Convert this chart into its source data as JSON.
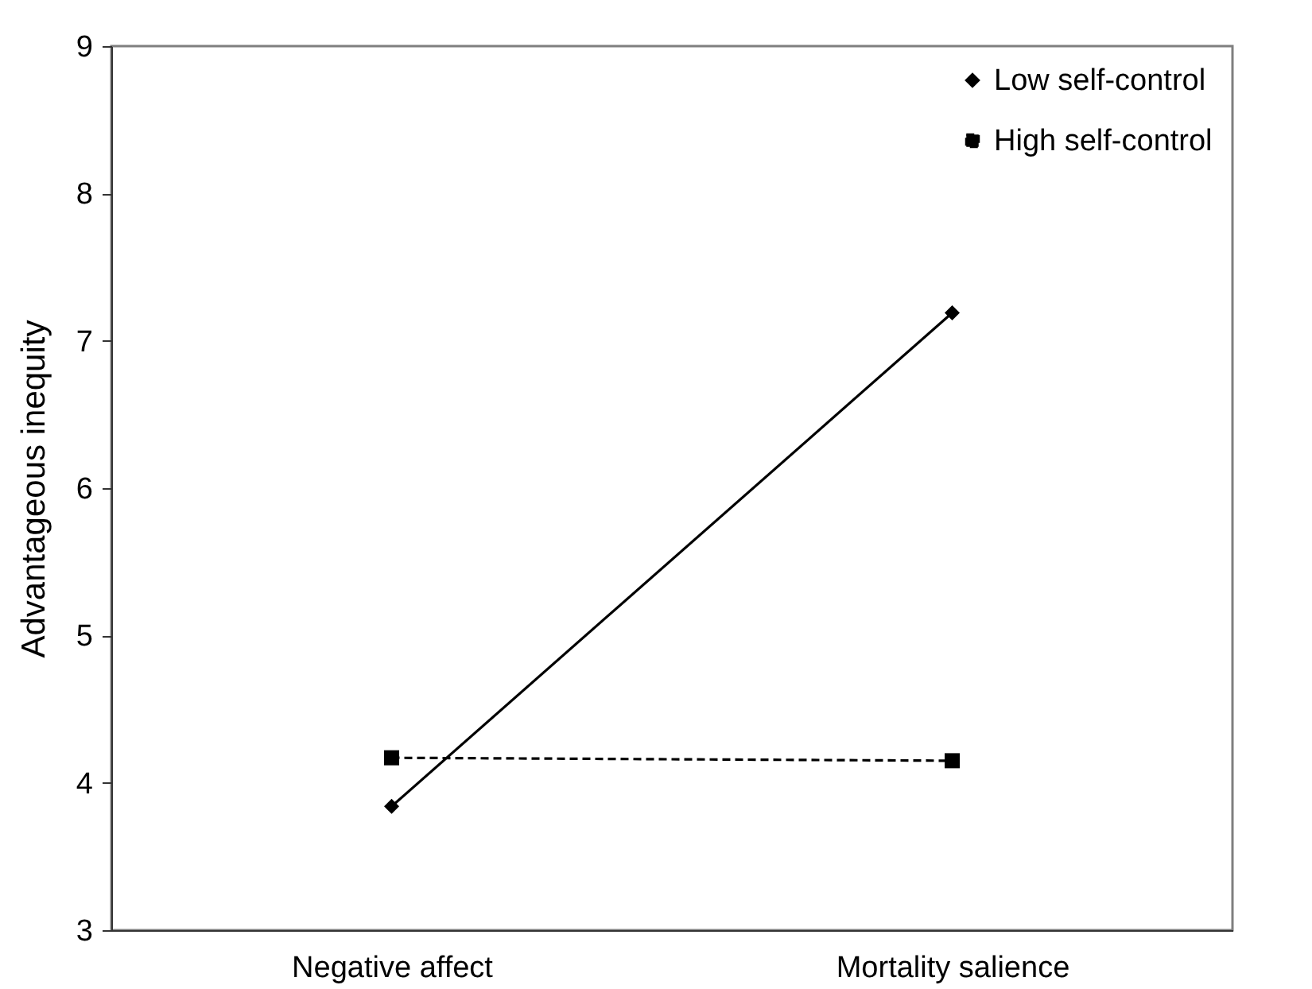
{
  "chart_data": {
    "type": "line",
    "ylabel": "Advantageous inequity",
    "categories": [
      "Negative affect",
      "Mortality salience"
    ],
    "series": [
      {
        "name": "Low self-control",
        "color": "#000000",
        "values": [
          3.84,
          7.19
        ],
        "marker": "diamond",
        "line_style": "solid"
      },
      {
        "name": "High self-control",
        "color": "#000000",
        "values": [
          4.17,
          4.15
        ],
        "marker": "square",
        "line_style": "dashed"
      }
    ],
    "ylim": [
      3,
      9
    ],
    "yticks": [
      3,
      4,
      5,
      6,
      7,
      8,
      9
    ],
    "grid": false,
    "legend": "top right"
  }
}
